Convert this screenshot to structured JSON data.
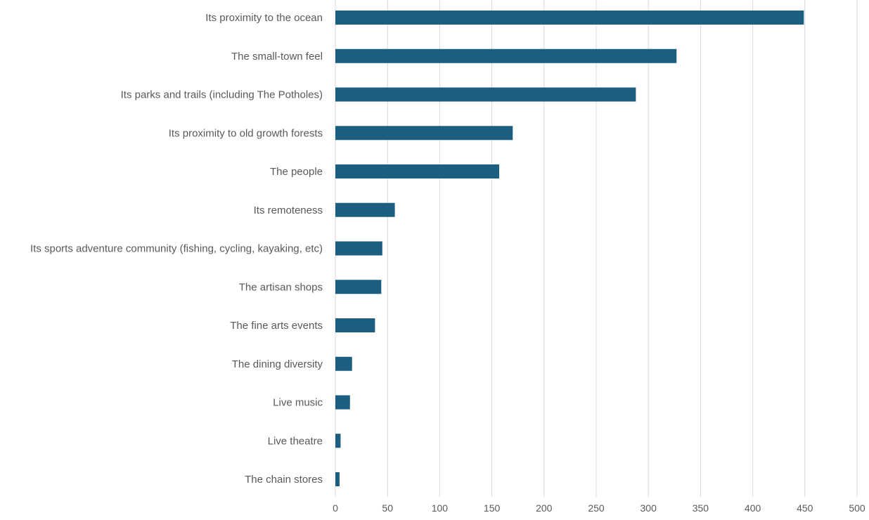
{
  "chart_data": {
    "type": "bar",
    "orientation": "horizontal",
    "title": "",
    "xlabel": "",
    "ylabel": "",
    "categories": [
      "Its proximity to the ocean",
      "The small-town feel",
      "Its parks and trails (including The Potholes)",
      "Its proximity to old growth forests",
      "The people",
      "Its remoteness",
      "Its sports adventure community (fishing, cycling, kayaking, etc)",
      "The artisan shops",
      "The fine arts events",
      "The dining diversity",
      "Live music",
      "Live theatre",
      "The chain stores"
    ],
    "values": [
      449,
      327,
      288,
      170,
      157,
      57,
      45,
      44,
      38,
      16,
      14,
      5,
      4
    ],
    "xlim": [
      0,
      500
    ],
    "xticks": [
      0,
      50,
      100,
      150,
      200,
      250,
      300,
      350,
      400,
      450,
      500
    ],
    "grid": true,
    "legend": "none",
    "bar_color": "#1b5e80"
  }
}
